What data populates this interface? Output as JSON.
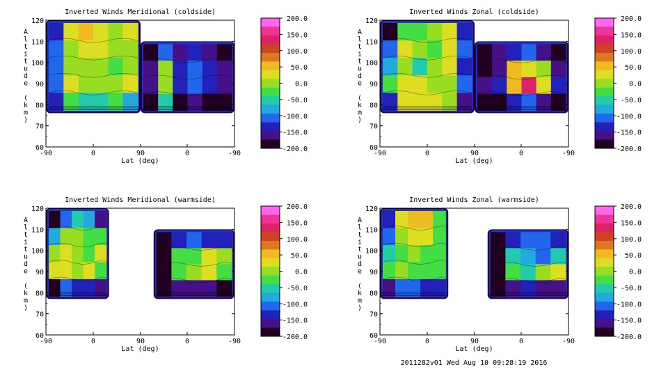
{
  "footer": "2011282v01 Wed Aug 10 09:28:19 2016",
  "colorbar": {
    "labels": [
      "200.0",
      "150.0",
      "100.0",
      "50.0",
      "0.0",
      "-50.0",
      "-100.0",
      "-150.0",
      "-200.0"
    ],
    "colors": [
      "#ff66ee",
      "#ee3399",
      "#dd2266",
      "#cc4422",
      "#dd7722",
      "#eebb22",
      "#dddd22",
      "#99dd22",
      "#44dd44",
      "#22ccaa",
      "#22aadd",
      "#2266ee",
      "#2222bb",
      "#441188",
      "#220022"
    ]
  },
  "chart_data": [
    {
      "type": "heatmap",
      "title": "Inverted Winds Meridional (coldside)",
      "xlabel": "Lat (deg)",
      "ylabel": "Altitude (km)",
      "x_ticks": [
        "-90",
        "0",
        "90",
        "0",
        "-90"
      ],
      "y_ticks": [
        "120",
        "110",
        "100",
        "90",
        "80",
        "70",
        "60"
      ],
      "ylim": [
        60,
        120
      ],
      "zlim": [
        -200,
        200
      ],
      "panels": [
        {
          "lat_range": [
            -90,
            90
          ],
          "alt_range": [
            76,
            120
          ],
          "rows": [
            [
              -140,
              20,
              50,
              40,
              10,
              20
            ],
            [
              -120,
              0,
              20,
              30,
              0,
              10
            ],
            [
              -110,
              -10,
              0,
              10,
              -20,
              -10
            ],
            [
              -120,
              20,
              10,
              -10,
              0,
              20
            ],
            [
              -150,
              -40,
              -50,
              -60,
              -40,
              -80
            ]
          ]
        },
        {
          "lat_range": [
            90,
            -90
          ],
          "alt_range": [
            76,
            110
          ],
          "rows": [
            [
              -200,
              -100,
              -160,
              -150,
              -170,
              -190
            ],
            [
              -170,
              0,
              -150,
              -120,
              -140,
              -170
            ],
            [
              -160,
              -10,
              -150,
              -100,
              -130,
              -180
            ],
            [
              -200,
              -60,
              -190,
              -170,
              -190,
              -200
            ]
          ]
        }
      ]
    },
    {
      "type": "heatmap",
      "title": "Inverted Winds Zonal (coldside)",
      "xlabel": "Lat (deg)",
      "ylabel": "Altitude (km)",
      "x_ticks": [
        "-90",
        "0",
        "90",
        "0",
        "-90"
      ],
      "y_ticks": [
        "120",
        "110",
        "100",
        "90",
        "80",
        "70",
        "60"
      ],
      "ylim": [
        60,
        120
      ],
      "zlim": [
        -200,
        200
      ],
      "panels": [
        {
          "lat_range": [
            -90,
            90
          ],
          "alt_range": [
            76,
            120
          ],
          "rows": [
            [
              -190,
              -40,
              -20,
              0,
              30,
              -150
            ],
            [
              -110,
              20,
              0,
              -30,
              40,
              -120
            ],
            [
              -80,
              10,
              -60,
              10,
              30,
              -130
            ],
            [
              -40,
              30,
              20,
              -10,
              0,
              -100
            ],
            [
              -150,
              40,
              20,
              30,
              10,
              -170
            ]
          ]
        },
        {
          "lat_range": [
            90,
            -90
          ],
          "alt_range": [
            76,
            110
          ],
          "rows": [
            [
              -200,
              -180,
              -150,
              -120,
              -160,
              -200
            ],
            [
              -190,
              -160,
              60,
              40,
              0,
              -180
            ],
            [
              -180,
              -150,
              50,
              140,
              30,
              -150
            ],
            [
              -200,
              -200,
              -150,
              -120,
              -170,
              -200
            ]
          ]
        }
      ]
    },
    {
      "type": "heatmap",
      "title": "Inverted Winds Meridional (warmside)",
      "xlabel": "Lat (deg)",
      "ylabel": "Altitude (km)",
      "x_ticks": [
        "-90",
        "0",
        "90",
        "0",
        "-90"
      ],
      "y_ticks": [
        "120",
        "110",
        "100",
        "90",
        "80",
        "70",
        "60"
      ],
      "ylim": [
        60,
        120
      ],
      "zlim": [
        -200,
        200
      ],
      "panels": [
        {
          "lat_range": [
            -90,
            30
          ],
          "alt_range": [
            77,
            120
          ],
          "rows": [
            [
              -200,
              -120,
              -60,
              -80,
              -160
            ],
            [
              -80,
              0,
              -10,
              -40,
              -30
            ],
            [
              0,
              30,
              10,
              -30,
              20
            ],
            [
              20,
              20,
              0,
              30,
              -20
            ],
            [
              -200,
              -120,
              -140,
              -150,
              -180
            ]
          ]
        },
        {
          "lat_range": [
            65,
            -90
          ],
          "alt_range": [
            77,
            110
          ],
          "rows": [
            [
              -200,
              -150,
              -120,
              -130,
              -150
            ],
            [
              -200,
              -30,
              -20,
              20,
              -10
            ],
            [
              -200,
              -40,
              10,
              30,
              -20
            ],
            [
              -200,
              -170,
              -180,
              -170,
              -190
            ]
          ]
        }
      ]
    },
    {
      "type": "heatmap",
      "title": "Inverted Winds Zonal (warmside)",
      "xlabel": "Lat (deg)",
      "ylabel": "Altitude (km)",
      "x_ticks": [
        "-90",
        "0",
        "90",
        "0",
        "-90"
      ],
      "y_ticks": [
        "120",
        "110",
        "100",
        "90",
        "80",
        "70",
        "60"
      ],
      "ylim": [
        60,
        120
      ],
      "zlim": [
        -200,
        200
      ],
      "panels": [
        {
          "lat_range": [
            -90,
            40
          ],
          "alt_range": [
            77,
            120
          ],
          "rows": [
            [
              -140,
              40,
              50,
              70,
              -30
            ],
            [
              -100,
              -10,
              20,
              40,
              -20
            ],
            [
              -60,
              -20,
              0,
              -30,
              -40
            ],
            [
              -30,
              -10,
              -20,
              -40,
              -30
            ],
            [
              -180,
              -120,
              -120,
              -130,
              -150
            ]
          ]
        },
        {
          "lat_range": [
            65,
            -90
          ],
          "alt_range": [
            77,
            110
          ],
          "rows": [
            [
              -200,
              -130,
              -110,
              -120,
              -150
            ],
            [
              -200,
              -60,
              -80,
              -100,
              -70
            ],
            [
              -190,
              -30,
              -50,
              0,
              20
            ],
            [
              -200,
              -160,
              -150,
              -160,
              -170
            ]
          ]
        }
      ]
    }
  ]
}
